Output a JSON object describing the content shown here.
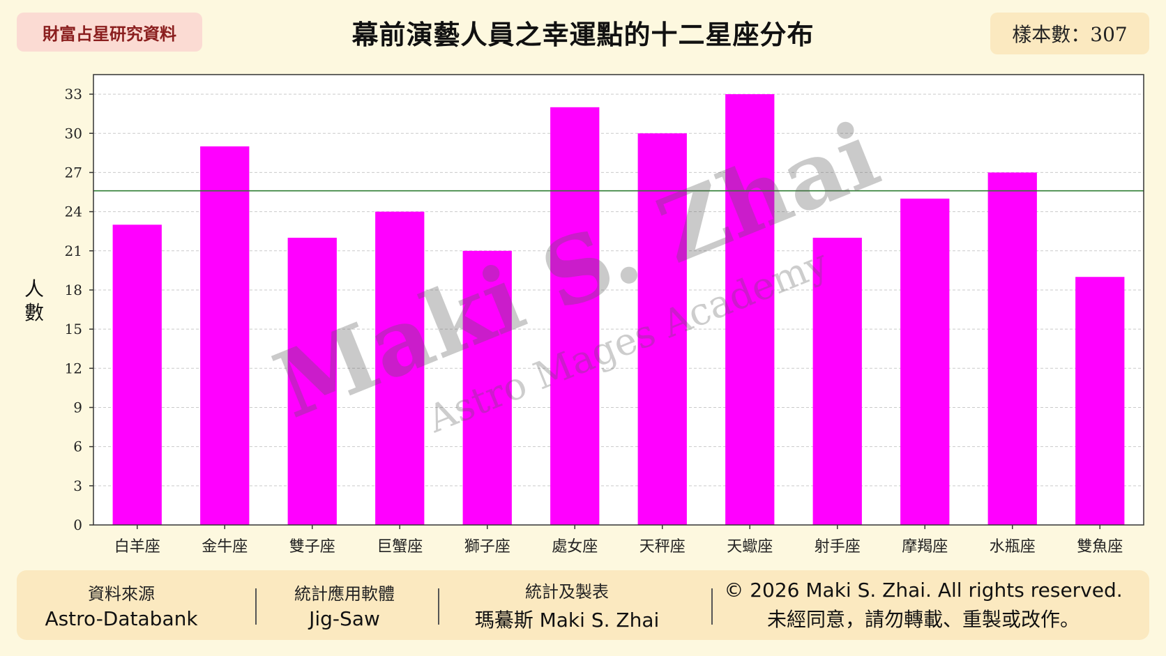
{
  "header": {
    "tag": "財富占星研究資料",
    "title": "幕前演藝人員之幸運點的十二星座分布",
    "sample_size": "樣本數：307"
  },
  "watermark": {
    "main": "Maki S. Zhai",
    "sub": "Astro Mages Academy"
  },
  "chart_data": {
    "type": "bar",
    "ylabel": "人數",
    "xlabel": "",
    "ylim": [
      0,
      34.5
    ],
    "yticks": [
      0,
      3,
      6,
      9,
      12,
      15,
      18,
      21,
      24,
      27,
      30,
      33
    ],
    "categories": [
      "白羊座",
      "金牛座",
      "雙子座",
      "巨蟹座",
      "獅子座",
      "處女座",
      "天秤座",
      "天蠍座",
      "射手座",
      "摩羯座",
      "水瓶座",
      "雙魚座"
    ],
    "values": [
      23,
      29,
      22,
      24,
      21,
      32,
      30,
      33,
      22,
      25,
      27,
      19
    ],
    "reference_line": 25.6,
    "bar_color": "#ff00ff",
    "reference_color": "#2e7d32",
    "grid": true,
    "legend": "none"
  },
  "footer": {
    "source_label": "資料來源",
    "source_value": "Astro-Databank",
    "software_label": "統計應用軟體",
    "software_value": "Jig-Saw",
    "author_label": "統計及製表",
    "author_value": "瑪驀斯 Maki S. Zhai",
    "copyright": "© 2026 Maki S. Zhai. All rights reserved.",
    "notice": "未經同意，請勿轉載、重製或改作。"
  }
}
